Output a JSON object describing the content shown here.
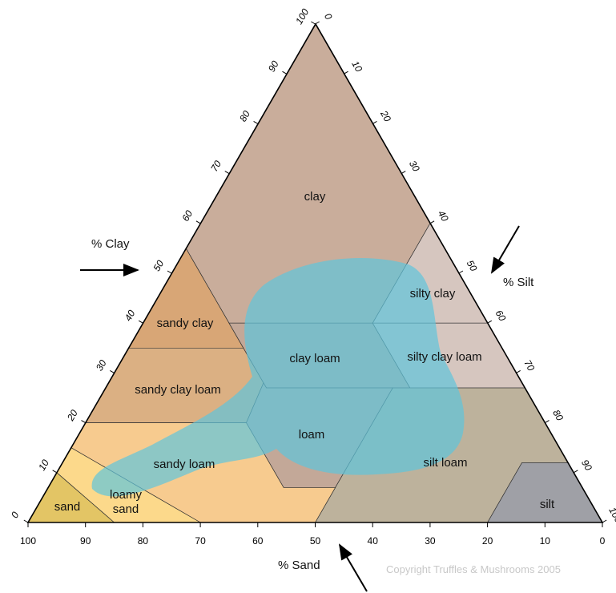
{
  "axes": {
    "clay": {
      "title": "% Clay",
      "ticks": [
        0,
        10,
        20,
        30,
        40,
        50,
        60,
        70,
        80,
        90,
        100
      ]
    },
    "silt": {
      "title": "% Silt",
      "ticks": [
        0,
        10,
        20,
        30,
        40,
        50,
        60,
        70,
        80,
        90,
        100
      ]
    },
    "sand": {
      "title": "% Sand",
      "ticks": [
        100,
        90,
        80,
        70,
        60,
        50,
        40,
        30,
        20,
        10,
        0
      ]
    }
  },
  "regions": [
    {
      "label": "clay"
    },
    {
      "label": "silty clay"
    },
    {
      "label": "sandy clay"
    },
    {
      "label": "sandy clay loam"
    },
    {
      "label": "clay loam"
    },
    {
      "label": "silty clay loam"
    },
    {
      "label": "loam"
    },
    {
      "label": "silt loam"
    },
    {
      "label": "silt"
    },
    {
      "label": "sandy loam"
    },
    {
      "label": "loamy sand"
    },
    {
      "label": "sand"
    }
  ],
  "copyright": "Copyright Truffles & Mushrooms 2005"
}
